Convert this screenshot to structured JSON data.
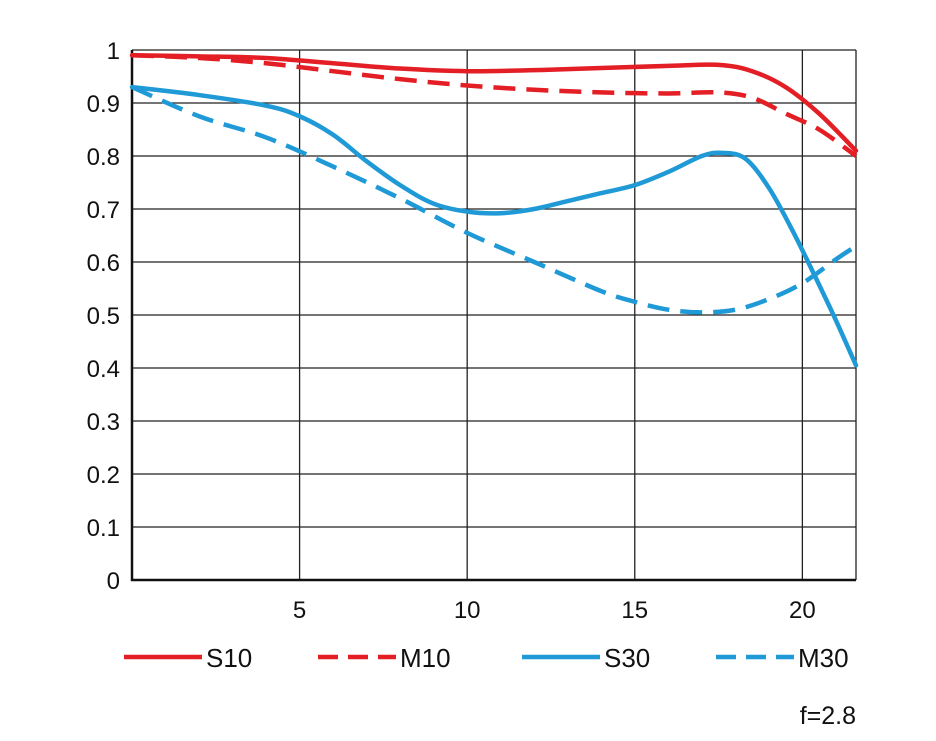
{
  "chart_data": {
    "type": "line",
    "title": "",
    "xlabel": "",
    "ylabel": "",
    "xlim": [
      0,
      21.6
    ],
    "ylim": [
      0,
      1
    ],
    "x_ticks": [
      5,
      10,
      15,
      20
    ],
    "x_tick_labels": [
      "5",
      "10",
      "15",
      "20"
    ],
    "y_ticks": [
      0,
      0.1,
      0.2,
      0.3,
      0.4,
      0.5,
      0.6,
      0.7,
      0.8,
      0.9,
      1
    ],
    "y_tick_labels": [
      "0",
      "0.1",
      "0.2",
      "0.3",
      "0.4",
      "0.5",
      "0.6",
      "0.7",
      "0.8",
      "0.9",
      "1"
    ],
    "grid": true,
    "legend_position": "bottom",
    "annotation": "f=2.8",
    "series": [
      {
        "name": "S10",
        "color": "#e31e24",
        "dash": "solid",
        "x": [
          0,
          2,
          4,
          6,
          8,
          10,
          12,
          14,
          16,
          17.5,
          18.5,
          19.5,
          20.5,
          21.6
        ],
        "y": [
          0.99,
          0.988,
          0.985,
          0.975,
          0.965,
          0.96,
          0.962,
          0.966,
          0.97,
          0.972,
          0.96,
          0.93,
          0.88,
          0.81
        ]
      },
      {
        "name": "M10",
        "color": "#e31e24",
        "dash": "dashed",
        "x": [
          0,
          2,
          4,
          6,
          8,
          10,
          12,
          14,
          16,
          17.5,
          18.5,
          19.5,
          20.5,
          21.6
        ],
        "y": [
          0.99,
          0.985,
          0.975,
          0.96,
          0.945,
          0.933,
          0.925,
          0.92,
          0.918,
          0.92,
          0.91,
          0.88,
          0.85,
          0.8
        ]
      },
      {
        "name": "S30",
        "color": "#1f9ad6",
        "dash": "solid",
        "x": [
          0,
          2,
          4,
          5,
          6,
          7,
          8,
          9,
          10,
          11,
          12,
          13,
          14,
          15,
          16,
          17,
          17.6,
          18.3,
          19,
          19.7,
          20.4,
          21,
          21.6
        ],
        "y": [
          0.93,
          0.915,
          0.895,
          0.875,
          0.84,
          0.79,
          0.745,
          0.71,
          0.695,
          0.692,
          0.7,
          0.715,
          0.73,
          0.745,
          0.77,
          0.8,
          0.806,
          0.795,
          0.74,
          0.66,
          0.57,
          0.49,
          0.405
        ]
      },
      {
        "name": "M30",
        "color": "#1f9ad6",
        "dash": "dashed",
        "x": [
          0,
          2,
          4,
          6,
          8,
          10,
          12,
          14,
          15,
          16,
          17,
          18,
          19,
          20,
          21,
          21.6
        ],
        "y": [
          0.93,
          0.875,
          0.835,
          0.78,
          0.72,
          0.655,
          0.6,
          0.545,
          0.525,
          0.51,
          0.505,
          0.51,
          0.53,
          0.56,
          0.605,
          0.63
        ]
      }
    ]
  }
}
